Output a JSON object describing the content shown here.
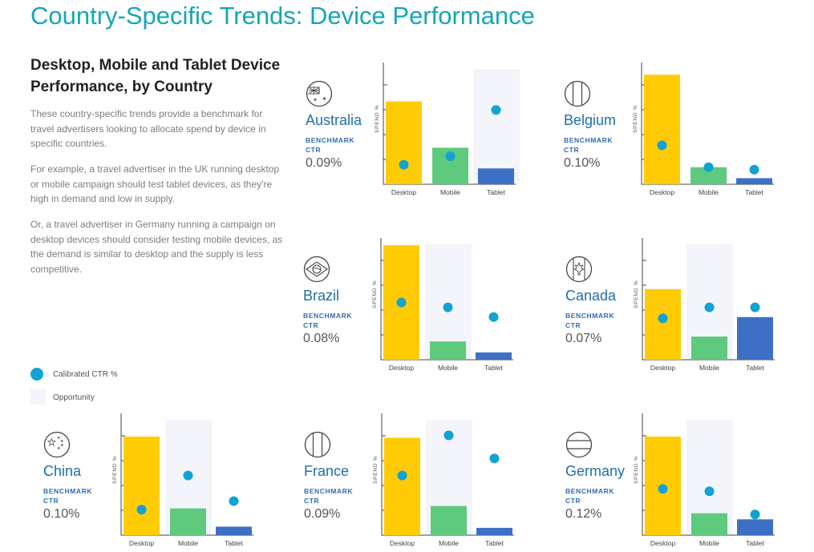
{
  "page": {
    "title": "Country-Specific Trends: Device Performance",
    "subtitle": "Desktop, Mobile and Tablet Device Performance, by Country",
    "paragraphs": [
      "These country-specific trends provide a benchmark for travel advertisers looking to allocate spend by device in specific countries.",
      "For example, a travel advertiser in the UK running desktop or mobile campaign should test tablet devices, as they're high in demand and low in supply.",
      "Or, a travel advertiser in Germany running a campaign on desktop devices should consider testing mobile devices, as the demand is similar to desktop and the supply is less competitive."
    ],
    "legend": {
      "ctr_label": "Calibrated CTR %",
      "opportunity_label": "Opportunity"
    },
    "benchmark_label": "BENCHMARK CTR",
    "colors": {
      "title": "#16a6b6",
      "country": "#1e6fa8",
      "desktop": "#ffcb05",
      "mobile": "#5fc97e",
      "tablet": "#3d6fc4",
      "ctr_dot": "#12a2d4",
      "opportunity": "#f3f5fb"
    }
  },
  "chart_data": [
    {
      "type": "bar",
      "country": "Australia",
      "flag_icon": "australia-flag-icon",
      "benchmark_ctr": "0.09%",
      "ylabel": "SPEND %",
      "categories": [
        "Desktop",
        "Mobile",
        "Tablet"
      ],
      "ylim": [
        0,
        100
      ],
      "values": [
        68,
        30,
        13
      ],
      "ctr": [
        16,
        23,
        61
      ],
      "opportunity": [
        "Tablet"
      ]
    },
    {
      "type": "bar",
      "country": "Belgium",
      "flag_icon": "belgium-flag-icon",
      "benchmark_ctr": "0.10%",
      "ylabel": "SPEND %",
      "categories": [
        "Desktop",
        "Mobile",
        "Tablet"
      ],
      "ylim": [
        0,
        100
      ],
      "values": [
        90,
        14,
        5
      ],
      "ctr": [
        32,
        14,
        12
      ],
      "opportunity": []
    },
    {
      "type": "bar",
      "country": "Brazil",
      "flag_icon": "brazil-flag-icon",
      "benchmark_ctr": "0.08%",
      "ylabel": "SPEND %",
      "categories": [
        "Desktop",
        "Mobile",
        "Tablet"
      ],
      "ylim": [
        0,
        100
      ],
      "values": [
        94,
        15,
        6
      ],
      "ctr": [
        47,
        43,
        35
      ],
      "opportunity": [
        "Mobile"
      ]
    },
    {
      "type": "bar",
      "country": "Canada",
      "flag_icon": "canada-flag-icon",
      "benchmark_ctr": "0.07%",
      "ylabel": "SPEND %",
      "categories": [
        "Desktop",
        "Mobile",
        "Tablet"
      ],
      "ylim": [
        0,
        100
      ],
      "values": [
        58,
        19,
        35
      ],
      "ctr": [
        34,
        43,
        43
      ],
      "opportunity": [
        "Mobile"
      ]
    },
    {
      "type": "bar",
      "country": "China",
      "flag_icon": "china-flag-icon",
      "benchmark_ctr": "0.10%",
      "ylabel": "SPEND %",
      "categories": [
        "Desktop",
        "Mobile",
        "Tablet"
      ],
      "ylim": [
        0,
        100
      ],
      "values": [
        81,
        22,
        7
      ],
      "ctr": [
        21,
        49,
        28
      ],
      "opportunity": [
        "Mobile"
      ]
    },
    {
      "type": "bar",
      "country": "France",
      "flag_icon": "france-flag-icon",
      "benchmark_ctr": "0.09%",
      "ylabel": "SPEND %",
      "categories": [
        "Desktop",
        "Mobile",
        "Tablet"
      ],
      "ylim": [
        0,
        100
      ],
      "values": [
        80,
        24,
        6
      ],
      "ctr": [
        49,
        82,
        63
      ],
      "opportunity": [
        "Mobile"
      ]
    },
    {
      "type": "bar",
      "country": "Germany",
      "flag_icon": "germany-flag-icon",
      "benchmark_ctr": "0.12%",
      "ylabel": "SPEND %",
      "categories": [
        "Desktop",
        "Mobile",
        "Tablet"
      ],
      "ylim": [
        0,
        100
      ],
      "values": [
        81,
        18,
        13
      ],
      "ctr": [
        38,
        36,
        17
      ],
      "opportunity": [
        "Mobile"
      ]
    }
  ]
}
